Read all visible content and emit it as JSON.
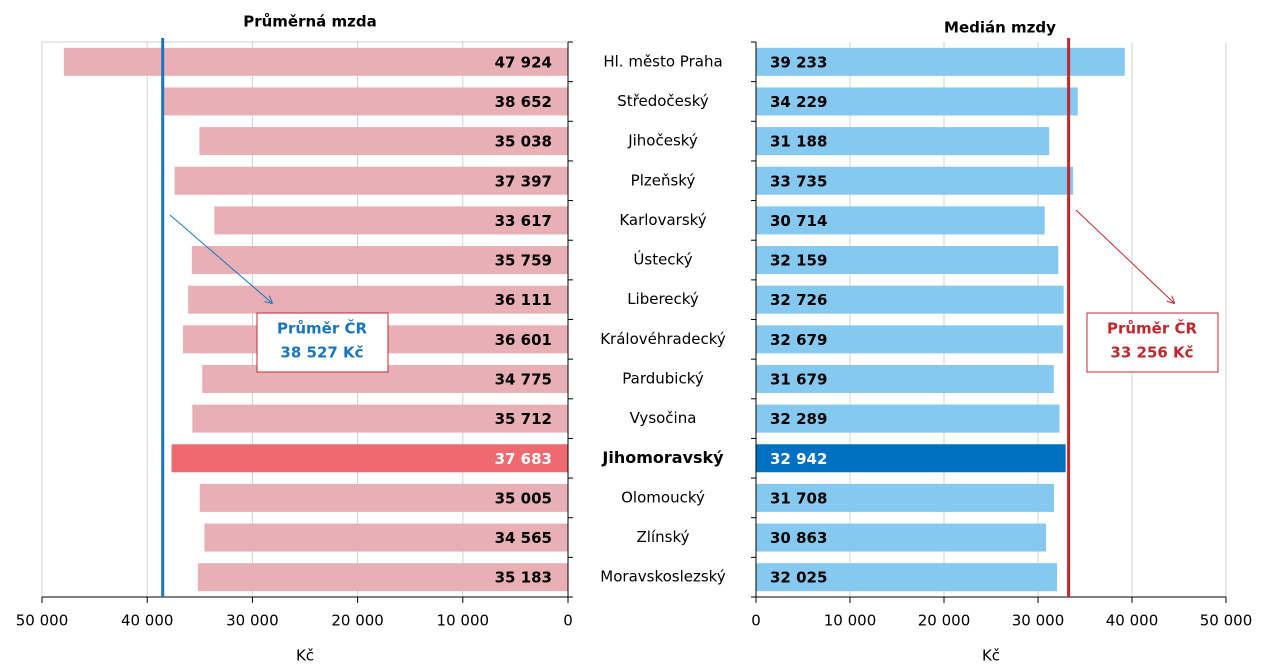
{
  "chart_data": [
    {
      "type": "barh",
      "title": "Průměrná mzda",
      "xlabel": "Kč",
      "x_reversed": true,
      "grid": true,
      "categories": [
        "Hl. město Praha",
        "Středočeský",
        "Jihočeský",
        "Plzeňský",
        "Karlovarský",
        "Ústecký",
        "Liberecký",
        "Královéhradecký",
        "Pardubický",
        "Vysočina",
        "Jihomoravský",
        "Olomoucký",
        "Zlínský",
        "Moravskoslezský"
      ],
      "values": [
        47924,
        38652,
        35038,
        37397,
        33617,
        35759,
        36111,
        36601,
        34775,
        35712,
        37683,
        35005,
        34565,
        35183
      ],
      "value_labels": [
        "47 924",
        "38 652",
        "35 038",
        "37 397",
        "33 617",
        "35 759",
        "36 111",
        "36 601",
        "34 775",
        "35 712",
        "37 683",
        "35 005",
        "34 565",
        "35 183"
      ],
      "color": "#e8b0b5",
      "highlight_index": 10,
      "highlight_color": "#ee6a70",
      "xlim": [
        0,
        50000
      ],
      "xticks": [
        0,
        {
          "value": 10000,
          "label": "10 000"
        },
        {
          "value": 20000,
          "label": "20 000"
        },
        {
          "value": 30000,
          "label": "30 000"
        },
        {
          "value": 40000,
          "label": "40 000"
        },
        {
          "value": 50000,
          "label": "50 000"
        }
      ],
      "reference": {
        "value": 38527,
        "title": "Průměr ČR",
        "label": "38 527 Kč",
        "color": "#1a75c0"
      }
    },
    {
      "type": "barh",
      "title": "Medián mzdy",
      "xlabel": "Kč",
      "x_reversed": false,
      "grid": true,
      "values": [
        39233,
        34229,
        31188,
        33735,
        30714,
        32159,
        32726,
        32679,
        31679,
        32289,
        32942,
        31708,
        30863,
        32025
      ],
      "value_labels": [
        "39 233",
        "34 229",
        "31 188",
        "33 735",
        "30 714",
        "32 159",
        "32 726",
        "32 679",
        "31 679",
        "32 289",
        "32 942",
        "31 708",
        "30 863",
        "32 025"
      ],
      "color": "#85c8f0",
      "highlight_index": 10,
      "highlight_color": "#0070c0",
      "xlim": [
        0,
        50000
      ],
      "xticks": [
        0,
        {
          "value": 10000,
          "label": "10 000"
        },
        {
          "value": 20000,
          "label": "20 000"
        },
        {
          "value": 30000,
          "label": "30 000"
        },
        {
          "value": 40000,
          "label": "40 000"
        },
        {
          "value": 50000,
          "label": "50 000"
        }
      ],
      "reference": {
        "value": 33256,
        "title": "Průměr ČR",
        "label": "33 256 Kč",
        "color": "#c0282d"
      }
    }
  ]
}
